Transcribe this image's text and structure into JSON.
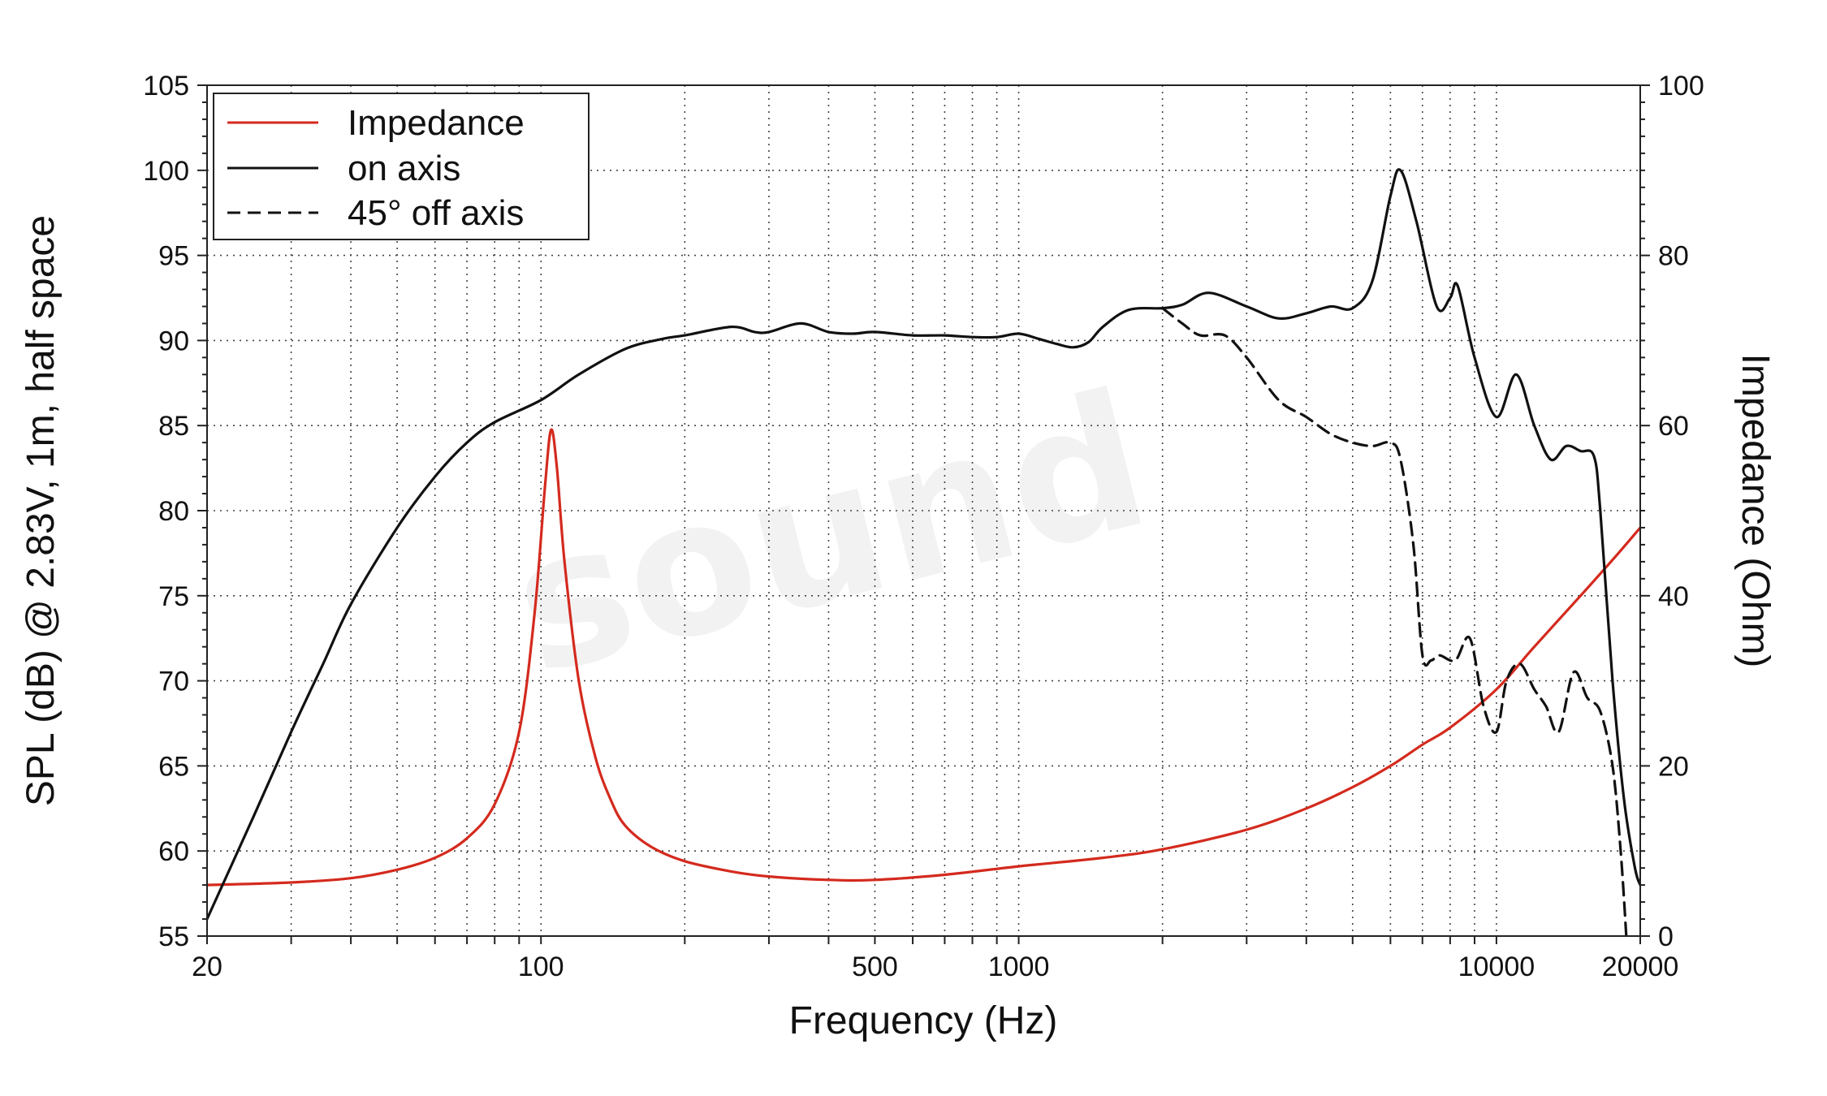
{
  "chart_data": {
    "type": "line",
    "xlabel": "Frequency (Hz)",
    "ylabel": "SPL (dB) @ 2.83V, 1m, half space",
    "y2label": "Impedance (Ohm)",
    "xscale": "log",
    "xlim": [
      20,
      20000
    ],
    "ylim": [
      55,
      105
    ],
    "y2lim": [
      0,
      100
    ],
    "grid": true,
    "legend_position": "top-left",
    "x_tick_labels": [
      "20",
      "100",
      "500",
      "1000",
      "10000",
      "20000"
    ],
    "y_tick_labels": [
      "105",
      "100",
      "95",
      "90",
      "85",
      "80",
      "75",
      "70",
      "65",
      "60",
      "55"
    ],
    "y2_tick_labels": [
      "100",
      "80",
      "60",
      "40",
      "20",
      "0"
    ],
    "watermark": "sound",
    "series": [
      {
        "name": "Impedance",
        "axis": "right",
        "color": "#d42a1e",
        "dash": "solid",
        "points": [
          [
            20,
            6
          ],
          [
            30,
            6.3
          ],
          [
            40,
            6.8
          ],
          [
            50,
            7.8
          ],
          [
            60,
            9.2
          ],
          [
            70,
            11.5
          ],
          [
            80,
            15.5
          ],
          [
            90,
            24
          ],
          [
            97,
            38
          ],
          [
            102,
            53
          ],
          [
            105,
            59.5
          ],
          [
            108,
            55
          ],
          [
            112,
            44
          ],
          [
            120,
            30
          ],
          [
            130,
            21
          ],
          [
            140,
            16
          ],
          [
            150,
            13
          ],
          [
            170,
            10.5
          ],
          [
            200,
            8.8
          ],
          [
            250,
            7.6
          ],
          [
            300,
            7
          ],
          [
            400,
            6.6
          ],
          [
            500,
            6.6
          ],
          [
            700,
            7.2
          ],
          [
            1000,
            8.2
          ],
          [
            1500,
            9.2
          ],
          [
            2000,
            10.2
          ],
          [
            3000,
            12.5
          ],
          [
            4000,
            15
          ],
          [
            5000,
            17.5
          ],
          [
            6000,
            20
          ],
          [
            7000,
            22.5
          ],
          [
            8000,
            24.5
          ],
          [
            10000,
            29
          ],
          [
            12000,
            34
          ],
          [
            15000,
            40
          ],
          [
            18000,
            45
          ],
          [
            20000,
            48
          ]
        ]
      },
      {
        "name": "on axis",
        "axis": "left",
        "color": "#111111",
        "dash": "solid",
        "points": [
          [
            20,
            56
          ],
          [
            25,
            62
          ],
          [
            30,
            67
          ],
          [
            35,
            71
          ],
          [
            40,
            74.5
          ],
          [
            50,
            79
          ],
          [
            60,
            82
          ],
          [
            70,
            84
          ],
          [
            80,
            85.2
          ],
          [
            100,
            86.5
          ],
          [
            120,
            88
          ],
          [
            150,
            89.5
          ],
          [
            180,
            90.1
          ],
          [
            200,
            90.3
          ],
          [
            250,
            90.8
          ],
          [
            280,
            90.5
          ],
          [
            300,
            90.5
          ],
          [
            350,
            91
          ],
          [
            400,
            90.5
          ],
          [
            450,
            90.4
          ],
          [
            500,
            90.5
          ],
          [
            600,
            90.3
          ],
          [
            700,
            90.3
          ],
          [
            800,
            90.2
          ],
          [
            900,
            90.2
          ],
          [
            1000,
            90.4
          ],
          [
            1100,
            90.1
          ],
          [
            1200,
            89.8
          ],
          [
            1300,
            89.6
          ],
          [
            1400,
            89.9
          ],
          [
            1500,
            90.8
          ],
          [
            1700,
            91.8
          ],
          [
            2000,
            91.9
          ],
          [
            2200,
            92.1
          ],
          [
            2500,
            92.8
          ],
          [
            3000,
            92
          ],
          [
            3500,
            91.3
          ],
          [
            4000,
            91.6
          ],
          [
            4500,
            92
          ],
          [
            5000,
            91.9
          ],
          [
            5500,
            93.5
          ],
          [
            6000,
            98.5
          ],
          [
            6300,
            100
          ],
          [
            6800,
            97
          ],
          [
            7500,
            92
          ],
          [
            8000,
            92.5
          ],
          [
            8300,
            93.2
          ],
          [
            9000,
            89
          ],
          [
            10000,
            85.5
          ],
          [
            11000,
            88
          ],
          [
            12000,
            85
          ],
          [
            13000,
            83
          ],
          [
            14000,
            83.8
          ],
          [
            15000,
            83.5
          ],
          [
            16000,
            83.2
          ],
          [
            16500,
            80
          ],
          [
            17500,
            70
          ],
          [
            18500,
            63
          ],
          [
            19500,
            59
          ],
          [
            20000,
            58
          ]
        ]
      },
      {
        "name": "45° off axis",
        "axis": "left",
        "color": "#111111",
        "dash": "dashed",
        "points": [
          [
            2000,
            91.9
          ],
          [
            2200,
            91
          ],
          [
            2400,
            90.3
          ],
          [
            2700,
            90.3
          ],
          [
            3000,
            89
          ],
          [
            3500,
            86.5
          ],
          [
            4000,
            85.5
          ],
          [
            4500,
            84.5
          ],
          [
            5000,
            84
          ],
          [
            5500,
            83.8
          ],
          [
            6000,
            84
          ],
          [
            6300,
            83
          ],
          [
            6700,
            78
          ],
          [
            7000,
            71.5
          ],
          [
            7300,
            71.2
          ],
          [
            7600,
            71.5
          ],
          [
            8200,
            71.2
          ],
          [
            8800,
            72.5
          ],
          [
            9400,
            68.5
          ],
          [
            10000,
            67
          ],
          [
            10500,
            70
          ],
          [
            11200,
            71
          ],
          [
            12000,
            69.5
          ],
          [
            12700,
            68.5
          ],
          [
            13500,
            67
          ],
          [
            14500,
            70.5
          ],
          [
            15500,
            69
          ],
          [
            16500,
            68.2
          ],
          [
            17500,
            65
          ],
          [
            18200,
            60
          ],
          [
            18700,
            55
          ]
        ]
      }
    ]
  }
}
